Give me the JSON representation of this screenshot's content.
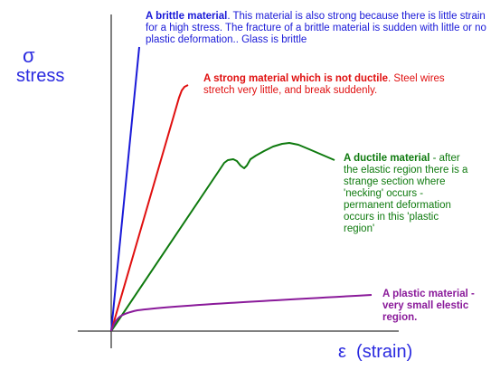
{
  "axes": {
    "y_symbol": "σ",
    "y_word": "stress",
    "x_label": "ε  (strain)",
    "axis_color": "#000000",
    "label_color": "#2a2ae0"
  },
  "materials": [
    {
      "id": "brittle",
      "color": "#1a1ad8",
      "title": "A brittle  material",
      "text": ".  This material is also strong because there is little strain for a high stress.  The fracture of a brittle material is sudden with little or no plastic deformation.. Glass is brittle"
    },
    {
      "id": "strong",
      "color": "#e01010",
      "title": "A strong material which is not ductile",
      "text": ".  Steel wires stretch very little, and break suddenly."
    },
    {
      "id": "ductile",
      "color": "#0e7a0e",
      "title": "A ductile  material",
      "text": " - after the elastic region there is a strange section where 'necking' occurs - permanent deformation occurs in this 'plastic region'"
    },
    {
      "id": "plastic",
      "color": "#8a1a9a",
      "title": "A plastic  material",
      "text": " - very small elestic region."
    }
  ]
}
